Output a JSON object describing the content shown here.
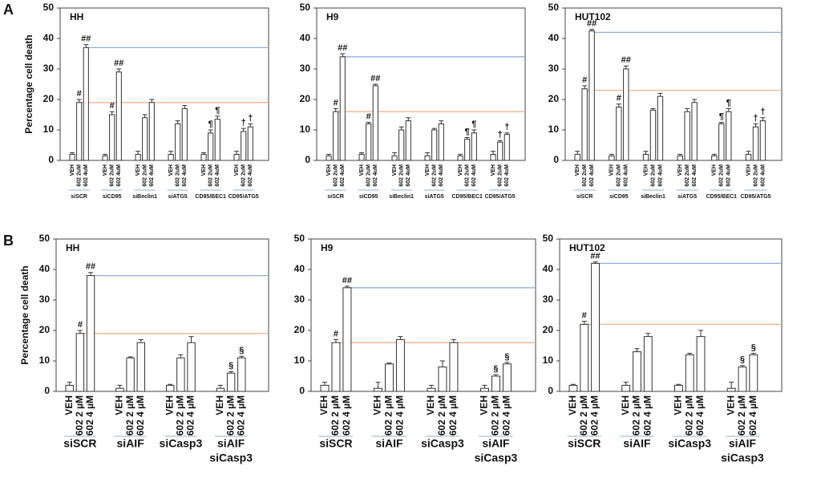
{
  "chart_data": [
    {
      "type": "bar",
      "panel_label": "A",
      "title": "HH",
      "ylabel": "Percentage cell death",
      "categories": [
        "VEH",
        "602 2uM",
        "602 4uM",
        "VEH",
        "602 2uM",
        "602 4uM",
        "VEH",
        "602 2uM",
        "602 4uM",
        "VEH",
        "602 2uM",
        "602 4uM",
        "VEH",
        "602 2uM",
        "602 4uM",
        "VEH",
        "602 2uM",
        "602 4uM"
      ],
      "groups": [
        "siSCR",
        "siCD95",
        "siBeclin1",
        "siATG5",
        "CD95/BEC1",
        "CD95/ATG5"
      ],
      "values": [
        2,
        19,
        37,
        1.5,
        15,
        29,
        2,
        14,
        19,
        2,
        12,
        17,
        2,
        9,
        13.5,
        2,
        9.5,
        11
      ],
      "errors": [
        0.5,
        1,
        1,
        0.5,
        1,
        1,
        1,
        1,
        1,
        1,
        1,
        1,
        0.5,
        1,
        1,
        1,
        1,
        1
      ],
      "annotations": [
        null,
        "#",
        "##",
        null,
        "#",
        "##",
        null,
        null,
        null,
        null,
        null,
        null,
        null,
        "¶",
        "¶",
        null,
        "†",
        "†"
      ],
      "reference_lines": [
        {
          "value": 37,
          "color": "#8fb0d8"
        },
        {
          "value": 19,
          "color": "#f0b48c"
        }
      ],
      "color": "#ffffff",
      "ylim": [
        0,
        50
      ],
      "yticks": [
        0,
        10,
        20,
        30,
        40,
        50
      ]
    },
    {
      "type": "bar",
      "title": "H9",
      "categories": [
        "VEH",
        "602 2uM",
        "602 4uM",
        "VEH",
        "602 2uM",
        "602 4uM",
        "VEH",
        "602 2uM",
        "602 4uM",
        "VEH",
        "602 2uM",
        "602 4uM",
        "VEH",
        "602 2uM",
        "602 4uM",
        "VEH",
        "602 2uM",
        "602 4uM"
      ],
      "groups": [
        "siSCR",
        "siCD95",
        "siBeclin1",
        "siATG5",
        "CD95/BEC1",
        "CD95/ATG5"
      ],
      "values": [
        1.5,
        16,
        34,
        2,
        12,
        24.5,
        1.5,
        10,
        13,
        1.5,
        10,
        12,
        1.5,
        7,
        9,
        2,
        6,
        8.5
      ],
      "errors": [
        0.5,
        1,
        1,
        0.5,
        0.5,
        0.5,
        1,
        1,
        1,
        1,
        0.5,
        1,
        0.5,
        0.5,
        1,
        1,
        0.5,
        0.5
      ],
      "annotations": [
        null,
        "#",
        "##",
        null,
        "#",
        "##",
        null,
        null,
        null,
        null,
        null,
        null,
        null,
        "¶",
        "¶",
        null,
        "†",
        "†"
      ],
      "reference_lines": [
        {
          "value": 34,
          "color": "#8fb0d8"
        },
        {
          "value": 16,
          "color": "#f0b48c"
        }
      ],
      "color": "#ffffff",
      "ylim": [
        0,
        50
      ],
      "yticks": [
        0,
        10,
        20,
        30,
        40,
        50
      ]
    },
    {
      "type": "bar",
      "title": "HUT102",
      "categories": [
        "VEH",
        "602 2uM",
        "602 4uM",
        "VEH",
        "602 2uM",
        "602 4uM",
        "VEH",
        "602 2uM",
        "602 4uM",
        "VEH",
        "602 2uM",
        "602 4uM",
        "VEH",
        "602 2uM",
        "602 4uM",
        "VEH",
        "602 2uM",
        "602 4uM"
      ],
      "groups": [
        "siSCR",
        "siCD95",
        "siBeclin1",
        "siATG5",
        "CD95/BEC1",
        "CD95/ATG5"
      ],
      "values": [
        2,
        23.5,
        42.5,
        1.5,
        17.5,
        30,
        2,
        16.5,
        21,
        1.5,
        16,
        19,
        1.5,
        12,
        16,
        2,
        11,
        13
      ],
      "errors": [
        1,
        1,
        0.5,
        0.5,
        1,
        1,
        1,
        0.5,
        1,
        0.5,
        1,
        1,
        0.5,
        0.5,
        1,
        1,
        1,
        1
      ],
      "annotations": [
        null,
        "#",
        "##",
        null,
        "#",
        "##",
        null,
        null,
        null,
        null,
        null,
        null,
        null,
        "¶",
        "¶",
        null,
        "†",
        "†"
      ],
      "reference_lines": [
        {
          "value": 42,
          "color": "#8fb0d8"
        },
        {
          "value": 23,
          "color": "#f0b48c"
        }
      ],
      "color": "#ffffff",
      "ylim": [
        0,
        50
      ],
      "yticks": [
        0,
        10,
        20,
        30,
        40,
        50
      ]
    },
    {
      "type": "bar",
      "panel_label": "B",
      "title": "HH",
      "ylabel": "Percentage cell death",
      "categories": [
        "VEH",
        "602 2 µM",
        "602 4 µM",
        "VEH",
        "602 2 µM",
        "602 4 µM",
        "VEH",
        "602 2 µM",
        "602 4 µM",
        "VEH",
        "602 2 µM",
        "602 4 µM"
      ],
      "groups": [
        [
          "siSCR"
        ],
        [
          "siAIF"
        ],
        [
          "siCasp3"
        ],
        [
          "siAIF",
          "siCasp3"
        ]
      ],
      "values": [
        2,
        19,
        38,
        1,
        11,
        16,
        2,
        11,
        16,
        1,
        6,
        11
      ],
      "errors": [
        1,
        1,
        1,
        1,
        0.3,
        1,
        0.3,
        1,
        2,
        1,
        0.5,
        0.5
      ],
      "annotations": [
        null,
        "#",
        "##",
        null,
        null,
        null,
        null,
        null,
        null,
        null,
        "§",
        "§"
      ],
      "reference_lines": [
        {
          "value": 38,
          "color": "#8fb0d8"
        },
        {
          "value": 19,
          "color": "#f0b48c"
        }
      ],
      "color": "#ffffff",
      "ylim": [
        0,
        50
      ],
      "yticks": [
        0,
        10,
        20,
        30,
        40,
        50
      ]
    },
    {
      "type": "bar",
      "title": "H9",
      "categories": [
        "VEH",
        "602 2 µM",
        "602 4 µM",
        "VEH",
        "602 2 µM",
        "602 4 µM",
        "VEH",
        "602 2 µM",
        "602 4 µM",
        "VEH",
        "602 2 µM",
        "602 4 µM"
      ],
      "groups": [
        [
          "siSCR"
        ],
        [
          "siAIF"
        ],
        [
          "siCasp3"
        ],
        [
          "siAIF",
          "siCasp3"
        ]
      ],
      "values": [
        2,
        16,
        34,
        1,
        9,
        17,
        1,
        8,
        16,
        1,
        5,
        9
      ],
      "errors": [
        1,
        1,
        0.5,
        2,
        0.3,
        1,
        1,
        2,
        1,
        1,
        0.5,
        0.5
      ],
      "annotations": [
        null,
        "#",
        "##",
        null,
        null,
        null,
        null,
        null,
        null,
        null,
        "§",
        "§"
      ],
      "reference_lines": [
        {
          "value": 34,
          "color": "#8fb0d8"
        },
        {
          "value": 16,
          "color": "#f0b48c"
        }
      ],
      "color": "#ffffff",
      "ylim": [
        0,
        50
      ],
      "yticks": [
        0,
        10,
        20,
        30,
        40,
        50
      ]
    },
    {
      "type": "bar",
      "title": "HUT102",
      "categories": [
        "VEH",
        "602 2 µM",
        "602 4 µM",
        "VEH",
        "602 2 µM",
        "602 4 µM",
        "VEH",
        "602 2 µM",
        "602 4 µM",
        "VEH",
        "602 2 µM",
        "602 4 µM"
      ],
      "groups": [
        [
          "siSCR"
        ],
        [
          "siAIF"
        ],
        [
          "siCasp3"
        ],
        [
          "siAIF",
          "siCasp3"
        ]
      ],
      "values": [
        2,
        22,
        42,
        2,
        13,
        18,
        2,
        12,
        18,
        1,
        8,
        12
      ],
      "errors": [
        0.3,
        1,
        0.5,
        1,
        1,
        1,
        0.3,
        0.5,
        2,
        2,
        0.5,
        0.5
      ],
      "annotations": [
        null,
        "#",
        "##",
        null,
        null,
        null,
        null,
        null,
        null,
        null,
        "§",
        "§"
      ],
      "reference_lines": [
        {
          "value": 42,
          "color": "#8fb0d8"
        },
        {
          "value": 22,
          "color": "#f0b48c"
        }
      ],
      "color": "#ffffff",
      "ylim": [
        0,
        50
      ],
      "yticks": [
        0,
        10,
        20,
        30,
        40,
        50
      ]
    }
  ]
}
